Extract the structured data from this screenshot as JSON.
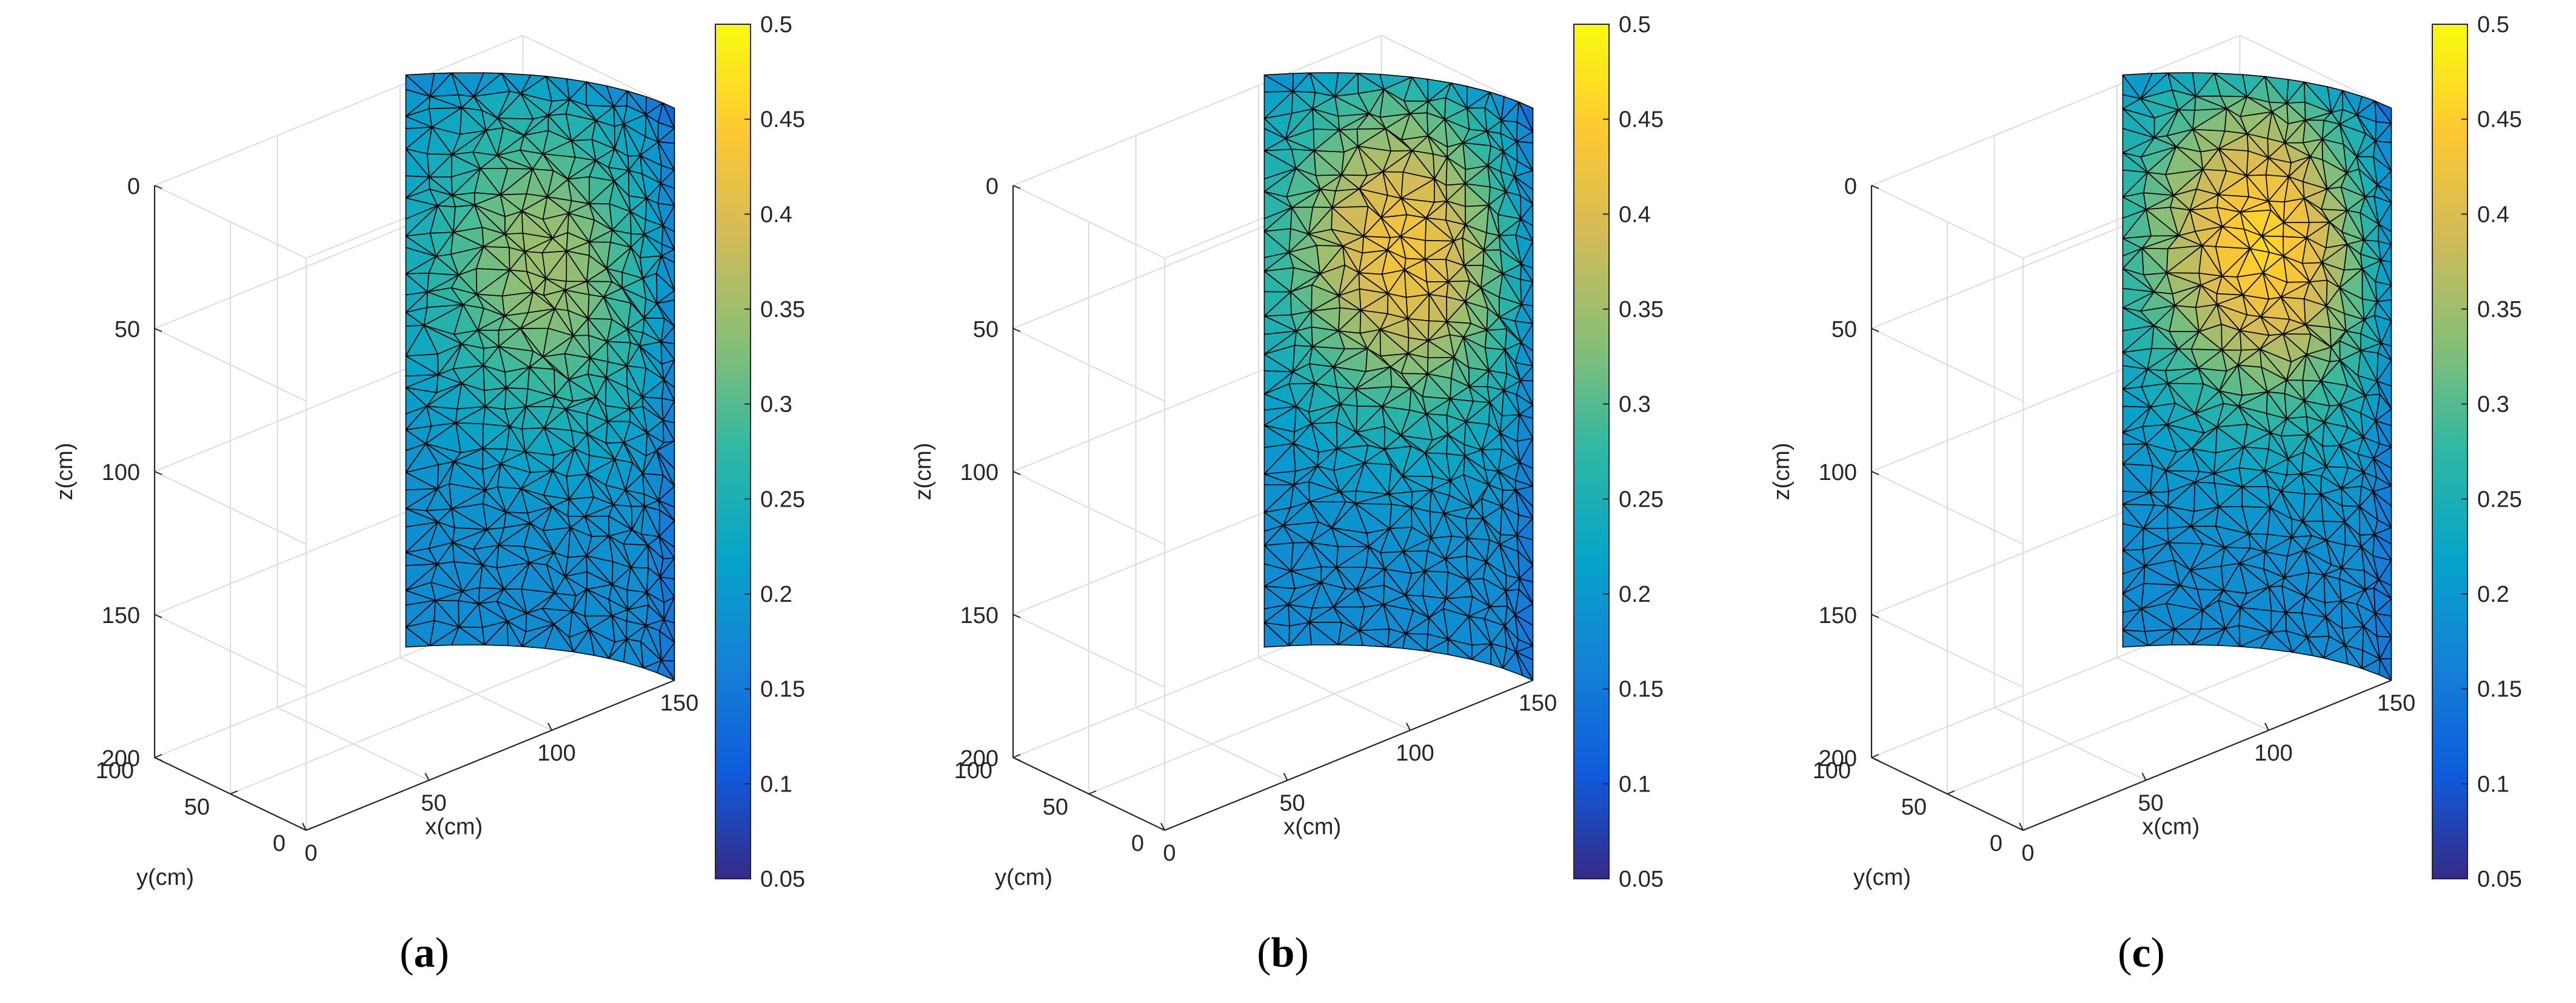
{
  "chart_data": [
    {
      "type": "heatmap",
      "panel_label": "a",
      "surface": "3D finite-element mesh surface (quarter cylinder, triangulated)",
      "xlabel": "x(cm)",
      "ylabel": "y(cm)",
      "zlabel": "z(cm)",
      "x_ticks": [
        "0",
        "50",
        "100",
        "150"
      ],
      "y_ticks": [
        "0",
        "50",
        "100"
      ],
      "z_ticks": [
        "0",
        "50",
        "100",
        "150",
        "200"
      ],
      "xlim": [
        0,
        150
      ],
      "ylim": [
        0,
        100
      ],
      "zlim": [
        0,
        200
      ],
      "z_reversed": true,
      "colorbar": {
        "colormap": "parula",
        "clim": [
          0.05,
          0.5
        ],
        "ticks": [
          "0.5",
          "0.45",
          "0.4",
          "0.35",
          "0.3",
          "0.25",
          "0.2",
          "0.15",
          "0.1",
          "0.05"
        ]
      },
      "background_value": 0.18,
      "anomaly": {
        "peak_value": 0.35,
        "center_depth_cm": 65
      },
      "grid": true
    },
    {
      "type": "heatmap",
      "panel_label": "b",
      "surface": "3D finite-element mesh surface (quarter cylinder, triangulated)",
      "xlabel": "x(cm)",
      "ylabel": "y(cm)",
      "zlabel": "z(cm)",
      "x_ticks": [
        "0",
        "50",
        "100",
        "150"
      ],
      "y_ticks": [
        "0",
        "50",
        "100"
      ],
      "z_ticks": [
        "0",
        "50",
        "100",
        "150",
        "200"
      ],
      "xlim": [
        0,
        150
      ],
      "ylim": [
        0,
        100
      ],
      "zlim": [
        0,
        200
      ],
      "z_reversed": true,
      "colorbar": {
        "colormap": "parula",
        "clim": [
          0.05,
          0.5
        ],
        "ticks": [
          "0.5",
          "0.45",
          "0.4",
          "0.35",
          "0.3",
          "0.25",
          "0.2",
          "0.15",
          "0.1",
          "0.05"
        ]
      },
      "background_value": 0.18,
      "anomaly": {
        "peak_value": 0.43,
        "center_depth_cm": 60
      },
      "grid": true
    },
    {
      "type": "heatmap",
      "panel_label": "c",
      "surface": "3D finite-element mesh surface (quarter cylinder, triangulated)",
      "xlabel": "x(cm)",
      "ylabel": "y(cm)",
      "zlabel": "z(cm)",
      "x_ticks": [
        "0",
        "50",
        "100",
        "150"
      ],
      "y_ticks": [
        "0",
        "50",
        "100"
      ],
      "z_ticks": [
        "0",
        "50",
        "100",
        "150",
        "200"
      ],
      "xlim": [
        0,
        150
      ],
      "ylim": [
        0,
        100
      ],
      "zlim": [
        0,
        200
      ],
      "z_reversed": true,
      "colorbar": {
        "colormap": "parula",
        "clim": [
          0.05,
          0.5
        ],
        "ticks": [
          "0.5",
          "0.45",
          "0.4",
          "0.35",
          "0.3",
          "0.25",
          "0.2",
          "0.15",
          "0.1",
          "0.05"
        ]
      },
      "background_value": 0.18,
      "anomaly": {
        "peak_value": 0.46,
        "center_depth_cm": 58
      },
      "grid": true
    }
  ],
  "colors": {
    "parula": [
      "#352a87",
      "#0f5cdd",
      "#1481d6",
      "#06a4ca",
      "#2eb7a4",
      "#87bf77",
      "#d1bb59",
      "#fec832",
      "#f9fb0e"
    ],
    "axis": "#262626",
    "grid": "#dcdcdc",
    "mesh": "#000000"
  }
}
